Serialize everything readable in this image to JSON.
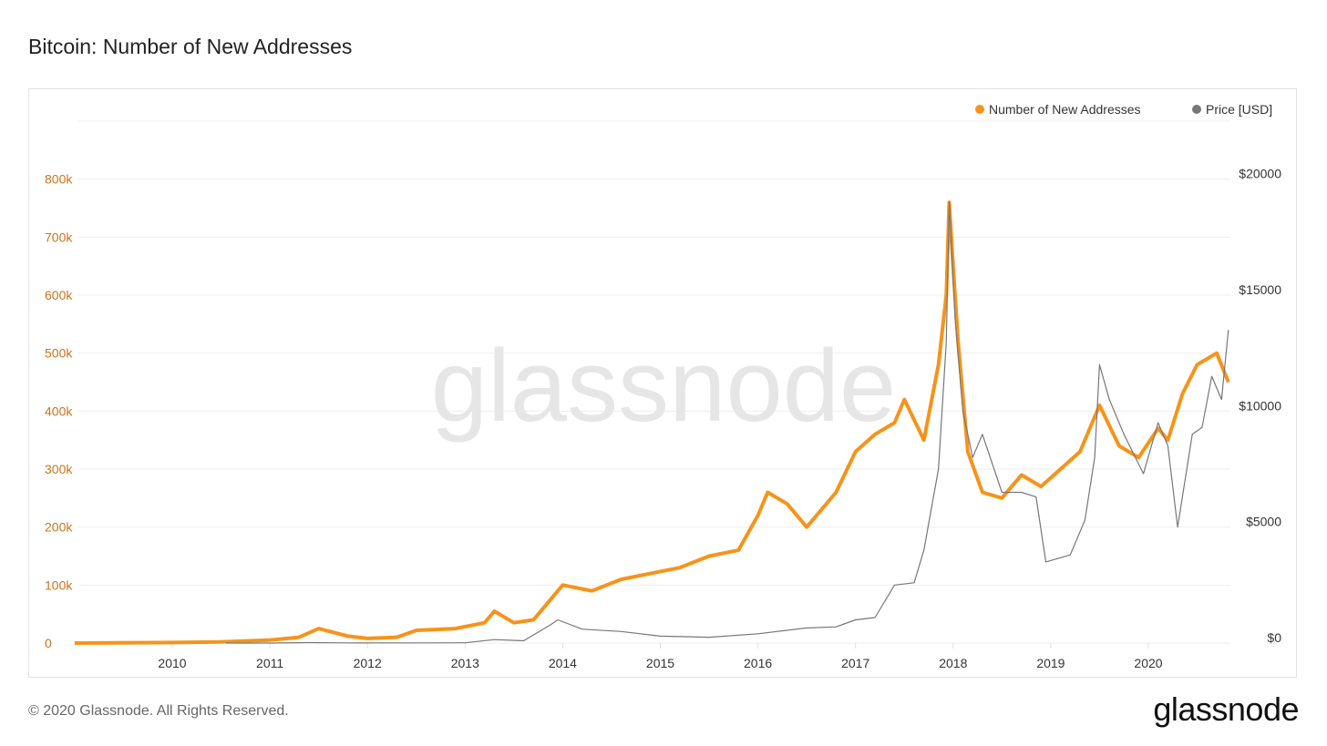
{
  "page": {
    "title": "Bitcoin: Number of New Addresses",
    "footer": "© 2020 Glassnode. All Rights Reserved.",
    "logo": "glassnode",
    "watermark": "glassnode"
  },
  "chart_data": {
    "type": "line",
    "title": "Bitcoin: Number of New Addresses",
    "legend_position": "top-right",
    "grid": true,
    "x_ticks": [
      "2010",
      "2011",
      "2012",
      "2013",
      "2014",
      "2015",
      "2016",
      "2017",
      "2018",
      "2019",
      "2020"
    ],
    "xlim": [
      2009.0,
      2020.82
    ],
    "y_left": {
      "ticks": [
        "0",
        "100k",
        "200k",
        "300k",
        "400k",
        "500k",
        "600k",
        "700k",
        "800k"
      ],
      "lim": [
        0,
        900000
      ],
      "color": "#c8741a"
    },
    "y_right": {
      "ticks": [
        "$0",
        "$5000",
        "$10000",
        "$15000",
        "$20000"
      ],
      "lim": [
        0,
        22500
      ],
      "color": "#333333"
    },
    "series": [
      {
        "name": "Number of New Addresses",
        "color": "#f7931a",
        "axis": "left",
        "x": [
          2009.0,
          2010.0,
          2010.5,
          2011.0,
          2011.3,
          2011.5,
          2011.8,
          2012.0,
          2012.3,
          2012.5,
          2012.9,
          2013.2,
          2013.3,
          2013.5,
          2013.7,
          2013.9,
          2014.0,
          2014.3,
          2014.6,
          2014.9,
          2015.2,
          2015.5,
          2015.8,
          2016.0,
          2016.1,
          2016.3,
          2016.5,
          2016.8,
          2017.0,
          2017.2,
          2017.4,
          2017.5,
          2017.7,
          2017.85,
          2017.93,
          2017.96,
          2018.0,
          2018.05,
          2018.15,
          2018.3,
          2018.5,
          2018.7,
          2018.9,
          2019.1,
          2019.3,
          2019.5,
          2019.7,
          2019.9,
          2020.1,
          2020.2,
          2020.35,
          2020.5,
          2020.7,
          2020.82
        ],
        "values": [
          0,
          1000,
          2000,
          5000,
          10000,
          25000,
          12000,
          8000,
          10000,
          22000,
          25000,
          35000,
          55000,
          35000,
          40000,
          80000,
          100000,
          90000,
          110000,
          120000,
          130000,
          150000,
          160000,
          220000,
          260000,
          240000,
          200000,
          260000,
          330000,
          360000,
          380000,
          420000,
          350000,
          480000,
          600000,
          760000,
          650000,
          520000,
          330000,
          260000,
          250000,
          290000,
          270000,
          300000,
          330000,
          410000,
          340000,
          320000,
          370000,
          350000,
          430000,
          480000,
          500000,
          450000
        ]
      },
      {
        "name": "Price [USD]",
        "color": "#777777",
        "axis": "right",
        "x": [
          2010.55,
          2011.0,
          2011.4,
          2011.9,
          2012.5,
          2013.0,
          2013.3,
          2013.6,
          2013.88,
          2013.95,
          2014.2,
          2014.6,
          2015.0,
          2015.5,
          2016.0,
          2016.5,
          2016.8,
          2017.0,
          2017.2,
          2017.4,
          2017.6,
          2017.7,
          2017.85,
          2017.93,
          2017.96,
          2018.02,
          2018.1,
          2018.2,
          2018.3,
          2018.5,
          2018.7,
          2018.85,
          2018.95,
          2019.2,
          2019.35,
          2019.45,
          2019.5,
          2019.6,
          2019.75,
          2019.95,
          2020.1,
          2020.2,
          2020.3,
          2020.45,
          2020.55,
          2020.65,
          2020.75,
          2020.82
        ],
        "values": [
          0.1,
          0.3,
          20,
          3,
          8,
          13,
          150,
          100,
          800,
          1000,
          600,
          500,
          300,
          250,
          400,
          650,
          700,
          1000,
          1100,
          2500,
          2600,
          4000,
          7500,
          13000,
          19000,
          14000,
          10000,
          8000,
          9000,
          6500,
          6500,
          6300,
          3500,
          3800,
          5300,
          8000,
          12000,
          10500,
          9000,
          7300,
          9500,
          8500,
          5000,
          9000,
          9300,
          11500,
          10500,
          13500
        ]
      }
    ]
  }
}
